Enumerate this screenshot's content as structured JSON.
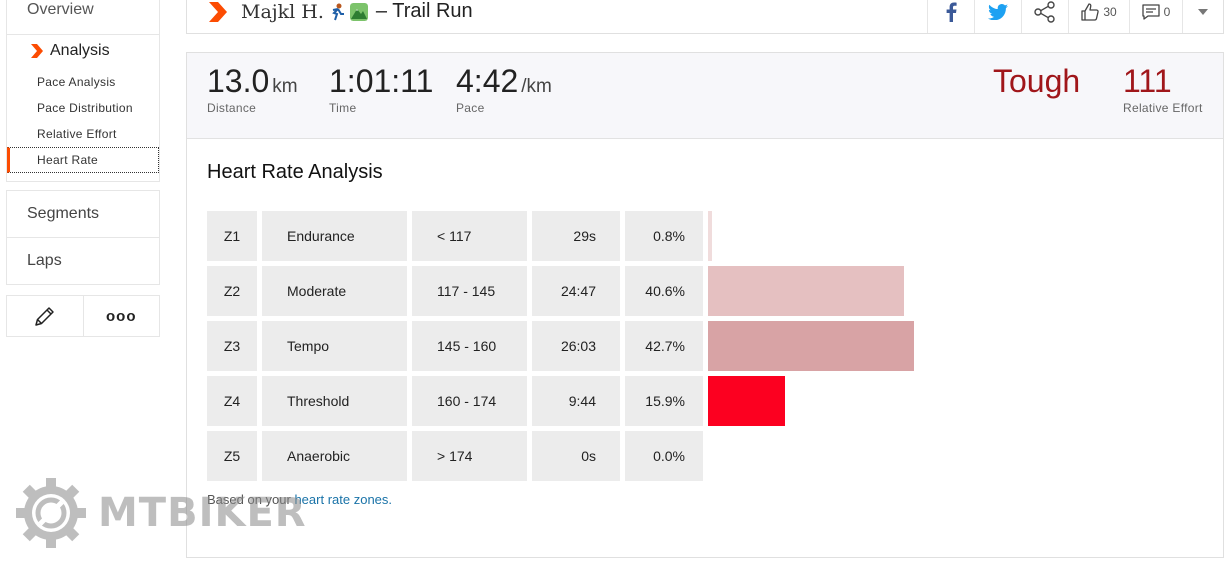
{
  "sidebar": {
    "overview": "Overview",
    "analysis": {
      "label": "Analysis",
      "items": [
        {
          "label": "Pace Analysis",
          "active": false
        },
        {
          "label": "Pace Distribution",
          "active": false
        },
        {
          "label": "Relative Effort",
          "active": false
        },
        {
          "label": "Heart Rate",
          "active": true
        }
      ]
    },
    "segments": "Segments",
    "laps": "Laps",
    "tools": {
      "edit_icon": "pencil-icon",
      "more_icon": "more-icon",
      "more_label": "ooo"
    }
  },
  "header": {
    "athlete": "Majkl H.",
    "activity_title": "– Trail Run",
    "kudos_count": "30",
    "comments_count": "0",
    "icons": [
      "facebook-icon",
      "twitter-icon",
      "share-icon",
      "thumbs-up-icon",
      "comment-icon",
      "chevron-down-icon"
    ]
  },
  "stats": {
    "distance": {
      "value": "13.0",
      "unit": "km",
      "label": "Distance"
    },
    "time": {
      "value": "1:01:11",
      "label": "Time"
    },
    "pace": {
      "value": "4:42",
      "unit": "/km",
      "label": "Pace"
    },
    "effort_word": "Tough",
    "relative_effort": {
      "value": "111",
      "label": "Relative Effort"
    }
  },
  "heart_rate": {
    "title": "Heart Rate Analysis",
    "zones": [
      {
        "zone": "Z1",
        "name": "Endurance",
        "range": "< 117",
        "time": "29s",
        "percent": "0.8%",
        "fraction": 0.008,
        "color": "#f0dcdc"
      },
      {
        "zone": "Z2",
        "name": "Moderate",
        "range": "117 - 145",
        "time": "24:47",
        "percent": "40.6%",
        "fraction": 0.406,
        "color": "#e5c0c1"
      },
      {
        "zone": "Z3",
        "name": "Tempo",
        "range": "145 - 160",
        "time": "26:03",
        "percent": "42.7%",
        "fraction": 0.427,
        "color": "#d8a3a5"
      },
      {
        "zone": "Z4",
        "name": "Threshold",
        "range": "160 - 174",
        "time": "9:44",
        "percent": "15.9%",
        "fraction": 0.159,
        "color": "#fc0020"
      },
      {
        "zone": "Z5",
        "name": "Anaerobic",
        "range": "> 174",
        "time": "0s",
        "percent": "0.0%",
        "fraction": 0.0,
        "color": "#f0dcdc"
      }
    ],
    "footnote_prefix": "Based on your ",
    "footnote_link": "heart rate zones."
  },
  "watermark": {
    "text": "MTBIKER",
    "icon": "gear-logo-icon"
  },
  "colors": {
    "accent": "#fc4c02",
    "effort": "#a0161a",
    "link": "#1a73a8"
  }
}
